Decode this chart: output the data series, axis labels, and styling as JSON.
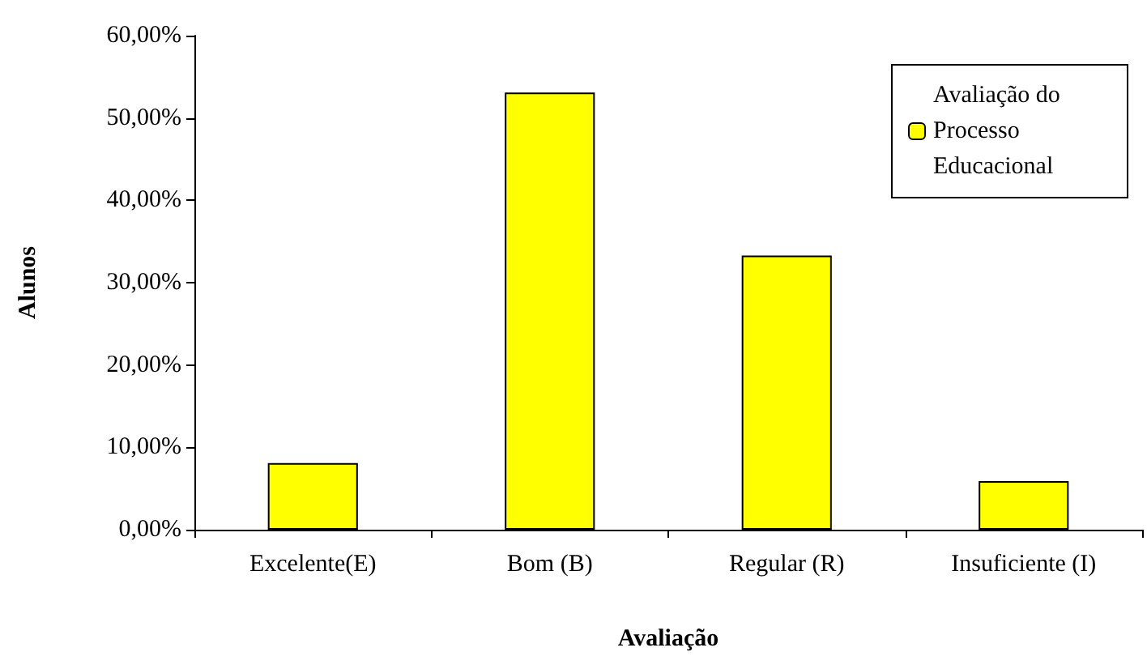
{
  "chart_data": {
    "type": "bar",
    "xlabel": "Avaliação",
    "ylabel": "Alunos",
    "categories": [
      "Excelente(E)",
      "Bom (B)",
      "Regular (R)",
      "Insuficiente (I)"
    ],
    "series": [
      {
        "name": "Avaliação do Processo Educacional",
        "color": "#ffff00",
        "values": [
          8.1,
          53.1,
          33.3,
          5.9
        ]
      }
    ],
    "ylim": [
      0,
      60
    ],
    "yticks": [
      {
        "value": 0,
        "label": "0,00%"
      },
      {
        "value": 10,
        "label": "10,00%"
      },
      {
        "value": 20,
        "label": "20,00%"
      },
      {
        "value": 30,
        "label": "30,00%"
      },
      {
        "value": 40,
        "label": "40,00%"
      },
      {
        "value": 50,
        "label": "50,00%"
      },
      {
        "value": 60,
        "label": "60,00%"
      }
    ],
    "grid": false,
    "legend": "top right"
  }
}
